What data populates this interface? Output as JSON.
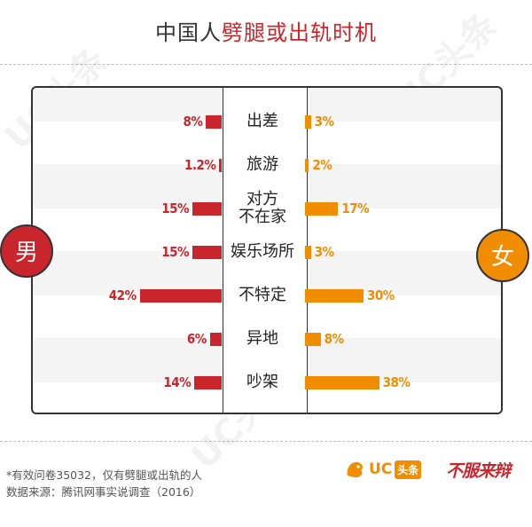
{
  "title": {
    "prefix": "中国人",
    "highlight": "劈腿或出轨时机"
  },
  "legend": {
    "male": "男",
    "female": "女"
  },
  "colors": {
    "male": "#c8262c",
    "female": "#f18d00",
    "text": "#333333"
  },
  "chart_data": {
    "type": "bar",
    "orientation": "horizontal-butterfly",
    "title": "中国人劈腿或出轨时机",
    "categories": [
      "出差",
      "旅游",
      "对方\n不在家",
      "娱乐场所",
      "不特定",
      "异地",
      "吵架"
    ],
    "series": [
      {
        "name": "男",
        "values": [
          8,
          1.2,
          15,
          15,
          42,
          6,
          14
        ],
        "labels": [
          "8%",
          "1.2%",
          "15%",
          "15%",
          "42%",
          "6%",
          "14%"
        ]
      },
      {
        "name": "女",
        "values": [
          3,
          2,
          17,
          3,
          30,
          8,
          38
        ],
        "labels": [
          "3%",
          "2%",
          "17%",
          "3%",
          "30%",
          "8%",
          "38%"
        ]
      }
    ],
    "unit": "%",
    "grid": false,
    "legend": "male-left, female-right"
  },
  "footnotes": {
    "line1": "*有效问卷35032，仅有劈腿或出轨的人",
    "line2": "数据来源：腾讯网事实说调查（2016）"
  },
  "logos": {
    "uc_text": "UC",
    "uc_badge": "头条",
    "bflb": "不服来辩",
    "watermark": "UC头条"
  }
}
